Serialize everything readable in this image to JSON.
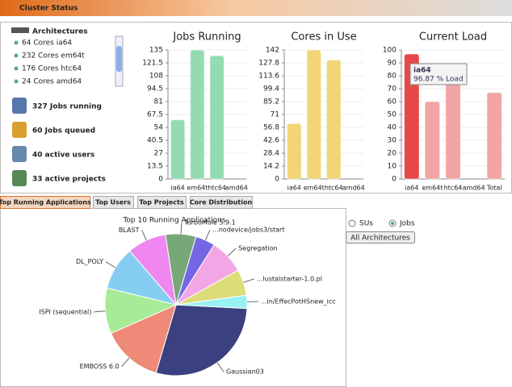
{
  "header": {
    "title": "Cluster Status"
  },
  "architectures": {
    "title": "Architectures",
    "items": [
      "64 Cores ia64",
      "232 Cores em64t",
      "176 Cores htc64",
      "24 Cores amd64"
    ]
  },
  "stats": [
    "327 Jobs running",
    "60 Jobs queued",
    "40 active users",
    "33 active projects"
  ],
  "charts": [
    {
      "type": "bar",
      "title": "Jobs Running",
      "categories": [
        "ia64",
        "em64t",
        "htc64",
        "amd64"
      ],
      "values": [
        62,
        135,
        129,
        0
      ],
      "colors": [
        "#93dcb2",
        "#93dcb2",
        "#93dcb2",
        "#93dcb2"
      ],
      "ylim": [
        0,
        135
      ],
      "yticks": [
        0,
        13.5,
        27,
        40.5,
        54,
        67.5,
        81,
        94.5,
        108,
        121.5,
        135
      ]
    },
    {
      "type": "bar",
      "title": "Cores in Use",
      "categories": [
        "ia64",
        "em64t",
        "htc64",
        "amd64"
      ],
      "values": [
        61,
        142,
        131,
        0
      ],
      "colors": [
        "#f1d576",
        "#f1d576",
        "#f1d576",
        "#f1d576"
      ],
      "ylim": [
        0,
        142
      ],
      "yticks": [
        0,
        14.2,
        28.4,
        42.6,
        56.8,
        71,
        85.2,
        99.4,
        113.6,
        127.8,
        142
      ]
    },
    {
      "type": "bar",
      "title": "Current Load",
      "categories": [
        "ia64",
        "em64t",
        "htc64",
        "amd64",
        "Total"
      ],
      "values": [
        96.87,
        60,
        74,
        0,
        67
      ],
      "colors": [
        "#e64848",
        "#f2a5a5",
        "#f2a5a5",
        "#f2a5a5",
        "#f2a5a5"
      ],
      "ylim": [
        0,
        100
      ],
      "yticks": [
        0,
        10,
        20,
        30,
        40,
        50,
        60,
        70,
        80,
        90,
        100
      ]
    }
  ],
  "tooltip": {
    "title": "ia64",
    "text": "96.87 % Load"
  },
  "tabs": {
    "labels": [
      "Top Running Applications",
      "Top Users",
      "Top Projects",
      "Core Distribution"
    ],
    "selected": 0
  },
  "pie": {
    "type": "pie",
    "title": "Top 10 Running Applications",
    "labels": [
      "Gaussian03",
      "EMBOSS 6.0",
      "ISPI (sequential)",
      "DL_POLY",
      "BLAST",
      "TurboMole 5.9.1",
      "...nodevice/jobs3/start",
      "Segregation",
      "...lustalstarter-1.0.pl",
      "...in/EffecPotHSnew_icc"
    ],
    "values": [
      29,
      14,
      10.5,
      10,
      9,
      7,
      4.5,
      8,
      6,
      3
    ],
    "colors": [
      "#3b4080",
      "#f08a78",
      "#a6eb98",
      "#86cdf2",
      "#f086f0",
      "#78a878",
      "#7466e4",
      "#f3a6e6",
      "#dcdc78",
      "#98f2f2"
    ]
  },
  "controls": {
    "radios": [
      "SUs",
      "Jobs"
    ],
    "selected": 1,
    "button": "All Architectures"
  }
}
